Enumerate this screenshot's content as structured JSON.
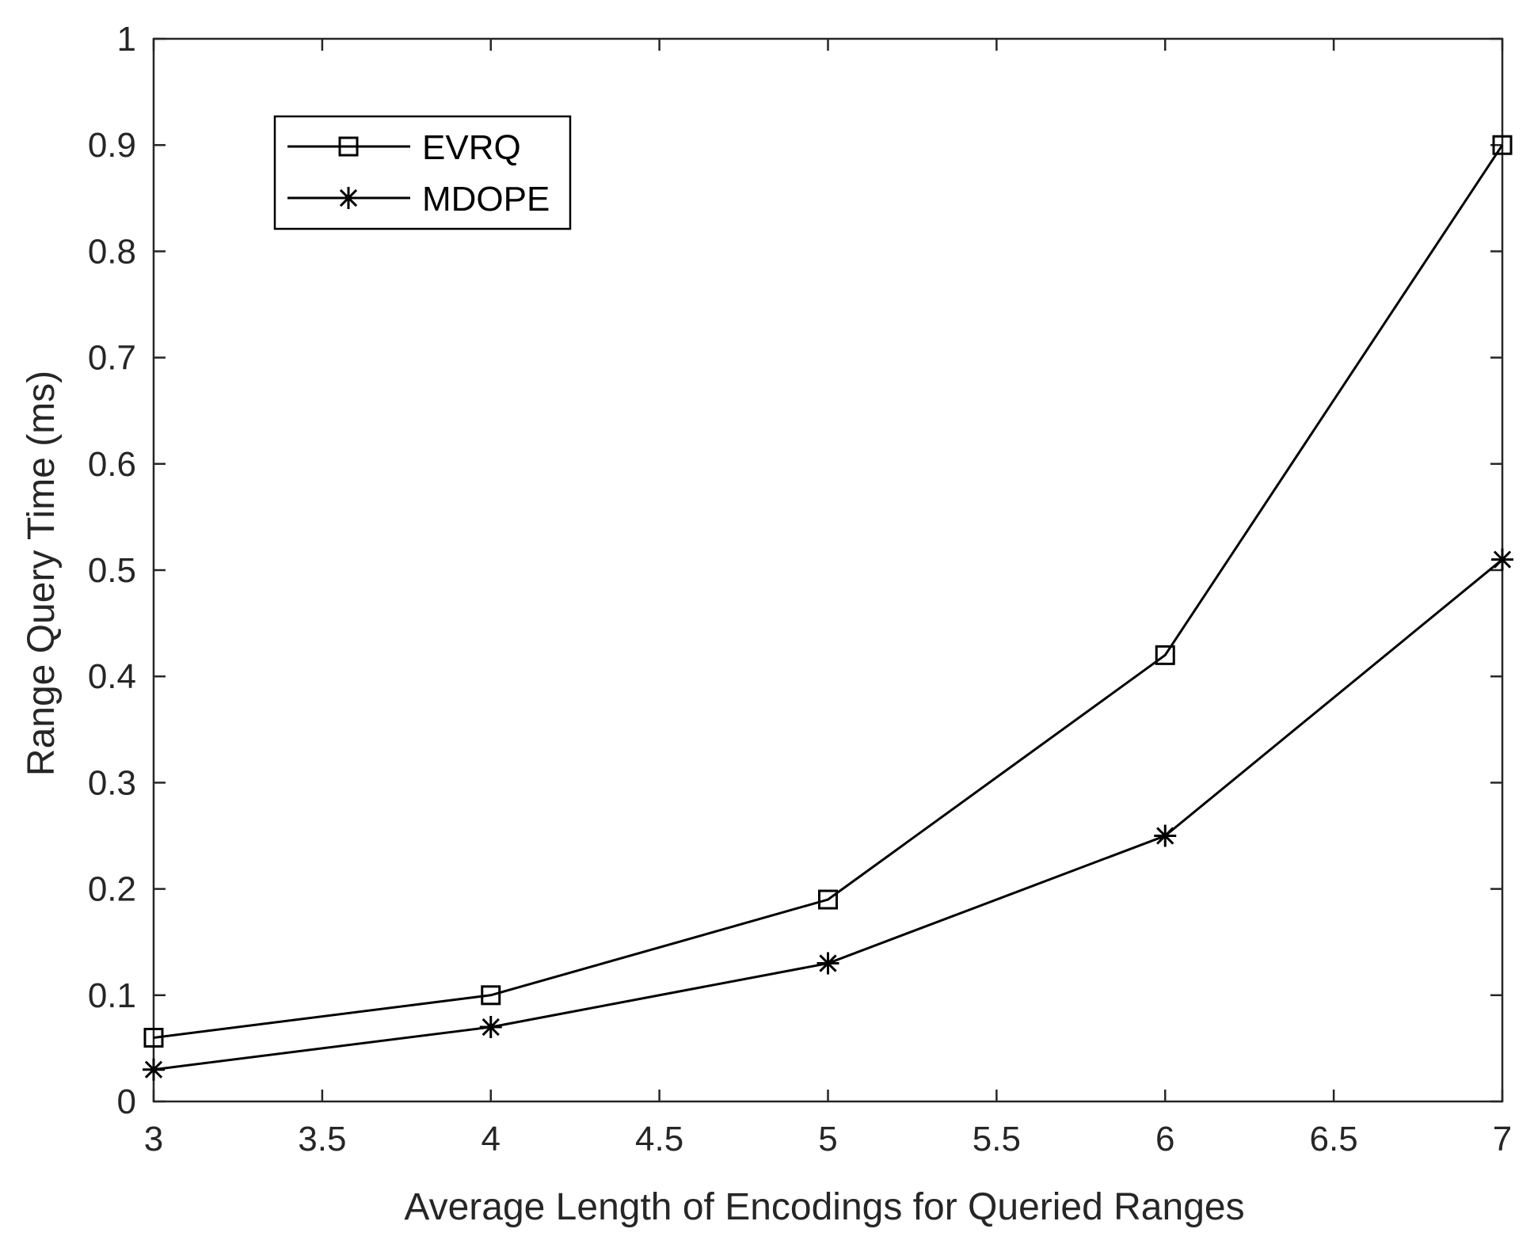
{
  "chart_data": {
    "type": "line",
    "title": "",
    "xlabel": "Average Length of Encodings for Queried Ranges",
    "ylabel": "Range Query Time (ms)",
    "xlim": [
      3,
      7
    ],
    "ylim": [
      0,
      1
    ],
    "xticks": [
      "3",
      "3.5",
      "4",
      "4.5",
      "5",
      "5.5",
      "6",
      "6.5",
      "7"
    ],
    "yticks": [
      "0",
      "0.1",
      "0.2",
      "0.3",
      "0.4",
      "0.5",
      "0.6",
      "0.7",
      "0.8",
      "0.9",
      "1"
    ],
    "grid": false,
    "legend_position": "top-left",
    "x": [
      3,
      4,
      5,
      6,
      7
    ],
    "series": [
      {
        "name": "EVRQ",
        "marker": "square",
        "values": [
          0.06,
          0.1,
          0.19,
          0.42,
          0.9
        ]
      },
      {
        "name": "MDOPE",
        "marker": "asterisk",
        "values": [
          0.03,
          0.07,
          0.13,
          0.25,
          0.51
        ]
      }
    ]
  },
  "colors": {
    "line": "#000000",
    "axis": "#262626",
    "background": "#ffffff"
  }
}
